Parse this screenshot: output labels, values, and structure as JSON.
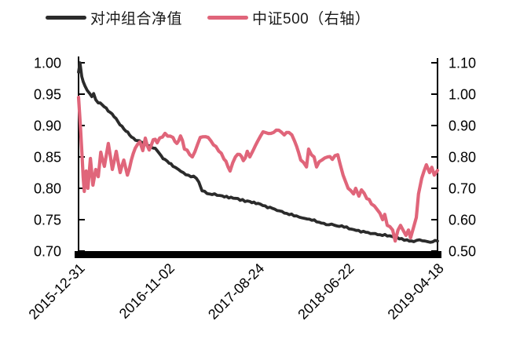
{
  "legend": {
    "items": [
      {
        "label": "对冲组合净值",
        "color": "#2b2b2b"
      },
      {
        "label": "中证500（右轴）",
        "color": "#e0657a"
      }
    ]
  },
  "chart_data": {
    "type": "line",
    "title": "",
    "grid": false,
    "legend_position": "top",
    "x_axis": {
      "labels": [
        "2015-12-31",
        "2016-11-02",
        "2017-08-24",
        "2018-06-22",
        "2019-04-18"
      ],
      "rotation": 45
    },
    "axes": {
      "left": {
        "min": 0.7,
        "max": 1.0,
        "ticks": [
          1.0,
          0.95,
          0.9,
          0.85,
          0.8,
          0.75,
          0.7
        ]
      },
      "right": {
        "min": 0.5,
        "max": 1.1,
        "ticks": [
          1.1,
          1.0,
          0.9,
          0.8,
          0.7,
          0.6,
          0.5
        ]
      }
    },
    "series": [
      {
        "name": "对冲组合净值",
        "axis": "left",
        "color": "#2b2b2b",
        "line_width": 3.8,
        "jitter": 0.0012,
        "points": [
          [
            0,
            0.985
          ],
          [
            0.004,
            1.0
          ],
          [
            0.009,
            0.978
          ],
          [
            0.013,
            0.97
          ],
          [
            0.018,
            0.963
          ],
          [
            0.024,
            0.956
          ],
          [
            0.031,
            0.951
          ],
          [
            0.037,
            0.946
          ],
          [
            0.042,
            0.951
          ],
          [
            0.048,
            0.941
          ],
          [
            0.055,
            0.936
          ],
          [
            0.066,
            0.933
          ],
          [
            0.077,
            0.928
          ],
          [
            0.088,
            0.921
          ],
          [
            0.099,
            0.914
          ],
          [
            0.11,
            0.906
          ],
          [
            0.121,
            0.899
          ],
          [
            0.132,
            0.891
          ],
          [
            0.142,
            0.885
          ],
          [
            0.153,
            0.88
          ],
          [
            0.164,
            0.876
          ],
          [
            0.175,
            0.873
          ],
          [
            0.186,
            0.871
          ],
          [
            0.197,
            0.868
          ],
          [
            0.208,
            0.864
          ],
          [
            0.219,
            0.86
          ],
          [
            0.23,
            0.852
          ],
          [
            0.241,
            0.846
          ],
          [
            0.252,
            0.84
          ],
          [
            0.263,
            0.835
          ],
          [
            0.285,
            0.827
          ],
          [
            0.306,
            0.821
          ],
          [
            0.328,
            0.816
          ],
          [
            0.335,
            0.81
          ],
          [
            0.344,
            0.796
          ],
          [
            0.365,
            0.791
          ],
          [
            0.4,
            0.788
          ],
          [
            0.437,
            0.784
          ],
          [
            0.477,
            0.779
          ],
          [
            0.5,
            0.776
          ],
          [
            0.52,
            0.772
          ],
          [
            0.54,
            0.768
          ],
          [
            0.56,
            0.764
          ],
          [
            0.58,
            0.76
          ],
          [
            0.6,
            0.756
          ],
          [
            0.615,
            0.754
          ],
          [
            0.63,
            0.752
          ],
          [
            0.65,
            0.749
          ],
          [
            0.67,
            0.746
          ],
          [
            0.69,
            0.742
          ],
          [
            0.705,
            0.743
          ],
          [
            0.72,
            0.74
          ],
          [
            0.74,
            0.738
          ],
          [
            0.76,
            0.735
          ],
          [
            0.78,
            0.733
          ],
          [
            0.8,
            0.73
          ],
          [
            0.82,
            0.728
          ],
          [
            0.84,
            0.726
          ],
          [
            0.86,
            0.724
          ],
          [
            0.88,
            0.722
          ],
          [
            0.9,
            0.72
          ],
          [
            0.915,
            0.718
          ],
          [
            0.934,
            0.715
          ],
          [
            0.95,
            0.718
          ],
          [
            0.965,
            0.716
          ],
          [
            0.98,
            0.714
          ],
          [
            1,
            0.716
          ]
        ]
      },
      {
        "name": "中证500（右轴）",
        "axis": "right",
        "color": "#e0657a",
        "line_width": 4.2,
        "jitter": 0.004,
        "points": [
          [
            0,
            0.99
          ],
          [
            0.005,
            0.9
          ],
          [
            0.009,
            0.82
          ],
          [
            0.013,
            0.735
          ],
          [
            0.016,
            0.69
          ],
          [
            0.021,
            0.755
          ],
          [
            0.026,
            0.7
          ],
          [
            0.033,
            0.795
          ],
          [
            0.04,
            0.71
          ],
          [
            0.048,
            0.76
          ],
          [
            0.055,
            0.737
          ],
          [
            0.062,
            0.815
          ],
          [
            0.072,
            0.77
          ],
          [
            0.083,
            0.843
          ],
          [
            0.094,
            0.76
          ],
          [
            0.105,
            0.818
          ],
          [
            0.116,
            0.75
          ],
          [
            0.126,
            0.79
          ],
          [
            0.136,
            0.742
          ],
          [
            0.147,
            0.79
          ],
          [
            0.158,
            0.828
          ],
          [
            0.171,
            0.848
          ],
          [
            0.179,
            0.82
          ],
          [
            0.186,
            0.86
          ],
          [
            0.197,
            0.822
          ],
          [
            0.208,
            0.855
          ],
          [
            0.219,
            0.845
          ],
          [
            0.241,
            0.875
          ],
          [
            0.263,
            0.862
          ],
          [
            0.274,
            0.843
          ],
          [
            0.284,
            0.867
          ],
          [
            0.295,
            0.825
          ],
          [
            0.317,
            0.8
          ],
          [
            0.339,
            0.862
          ],
          [
            0.361,
            0.862
          ],
          [
            0.383,
            0.833
          ],
          [
            0.405,
            0.793
          ],
          [
            0.422,
            0.755
          ],
          [
            0.437,
            0.8
          ],
          [
            0.449,
            0.808
          ],
          [
            0.459,
            0.788
          ],
          [
            0.47,
            0.818
          ],
          [
            0.477,
            0.8
          ],
          [
            0.486,
            0.82
          ],
          [
            0.499,
            0.85
          ],
          [
            0.514,
            0.88
          ],
          [
            0.536,
            0.875
          ],
          [
            0.558,
            0.885
          ],
          [
            0.573,
            0.87
          ],
          [
            0.586,
            0.878
          ],
          [
            0.602,
            0.85
          ],
          [
            0.619,
            0.79
          ],
          [
            0.635,
            0.768
          ],
          [
            0.641,
            0.825
          ],
          [
            0.656,
            0.8
          ],
          [
            0.663,
            0.768
          ],
          [
            0.678,
            0.79
          ],
          [
            0.694,
            0.8
          ],
          [
            0.707,
            0.792
          ],
          [
            0.722,
            0.807
          ],
          [
            0.729,
            0.775
          ],
          [
            0.737,
            0.742
          ],
          [
            0.751,
            0.7
          ],
          [
            0.766,
            0.682
          ],
          [
            0.772,
            0.7
          ],
          [
            0.781,
            0.675
          ],
          [
            0.788,
            0.695
          ],
          [
            0.803,
            0.667
          ],
          [
            0.816,
            0.65
          ],
          [
            0.832,
            0.632
          ],
          [
            0.847,
            0.6
          ],
          [
            0.853,
            0.617
          ],
          [
            0.86,
            0.582
          ],
          [
            0.875,
            0.567
          ],
          [
            0.882,
            0.532
          ],
          [
            0.89,
            0.567
          ],
          [
            0.897,
            0.582
          ],
          [
            0.904,
            0.567
          ],
          [
            0.912,
            0.55
          ],
          [
            0.919,
            0.567
          ],
          [
            0.925,
            0.542
          ],
          [
            0.941,
            0.607
          ],
          [
            0.947,
            0.682
          ],
          [
            0.956,
            0.732
          ],
          [
            0.963,
            0.757
          ],
          [
            0.969,
            0.775
          ],
          [
            0.978,
            0.75
          ],
          [
            0.984,
            0.767
          ],
          [
            0.991,
            0.742
          ],
          [
            1,
            0.757
          ]
        ]
      }
    ]
  }
}
